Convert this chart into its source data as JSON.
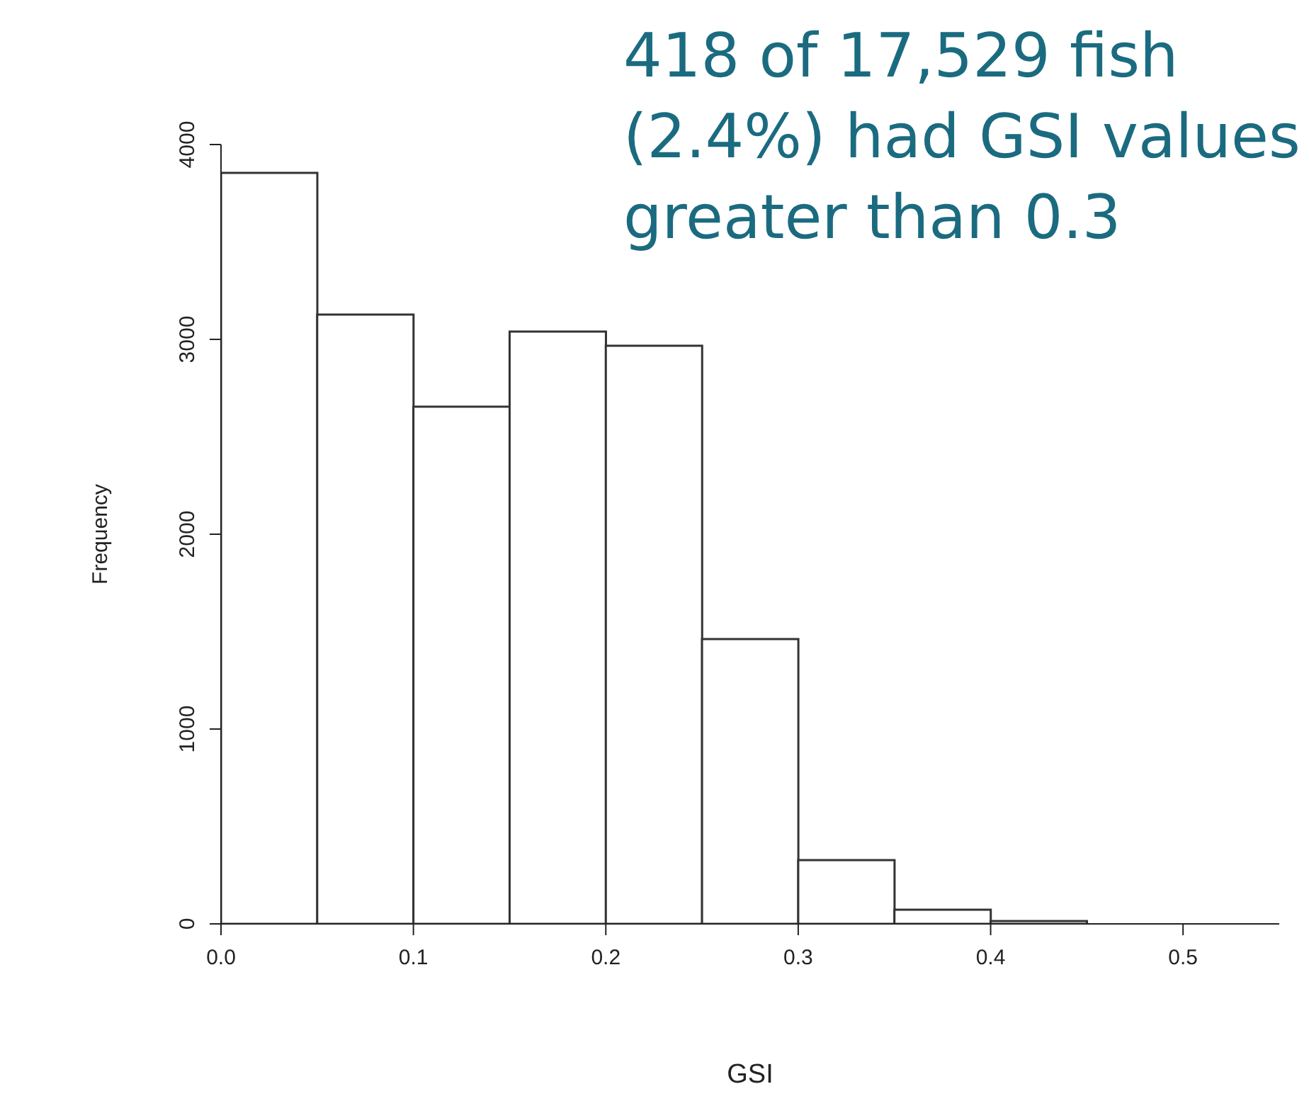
{
  "chart_data": {
    "type": "histogram",
    "xlabel": "GSI",
    "ylabel": "Frequency",
    "annotations": [
      "418 of 17,529 fish\n(2.4%) had GSI values\ngreater than 0.3"
    ],
    "bins": [
      0,
      0.05,
      0.1,
      0.15,
      0.2,
      0.25,
      0.3,
      0.35,
      0.4,
      0.45,
      0.5,
      0.55
    ],
    "values": [
      3855,
      3127,
      2655,
      3040,
      2967,
      1462,
      327,
      73,
      15,
      null,
      null
    ],
    "color": "#ffffff",
    "xlim": [
      0,
      0.55
    ],
    "xticks": [
      {
        "value": 0,
        "label": "0.0"
      },
      0.1,
      0.2,
      0.3,
      0.4,
      0.5
    ],
    "ylim": [
      0,
      4000
    ],
    "yticks": [
      0,
      1000,
      2000,
      3000,
      4000
    ],
    "grid": false
  }
}
